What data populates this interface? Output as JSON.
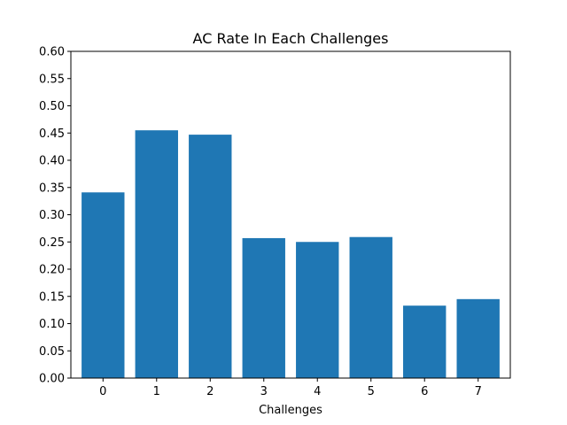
{
  "chart_data": {
    "type": "bar",
    "title": "AC Rate In Each Challenges",
    "xlabel": "Challenges",
    "ylabel": "",
    "categories": [
      "0",
      "1",
      "2",
      "3",
      "4",
      "5",
      "6",
      "7"
    ],
    "values": [
      0.341,
      0.455,
      0.447,
      0.257,
      0.25,
      0.259,
      0.133,
      0.145
    ],
    "ylim": [
      0,
      0.6
    ],
    "yticks": [
      "0.00",
      "0.05",
      "0.10",
      "0.15",
      "0.20",
      "0.25",
      "0.30",
      "0.35",
      "0.40",
      "0.45",
      "0.50",
      "0.55",
      "0.60"
    ],
    "bar_color": "#1f77b4",
    "grid": false,
    "legend": "none"
  }
}
